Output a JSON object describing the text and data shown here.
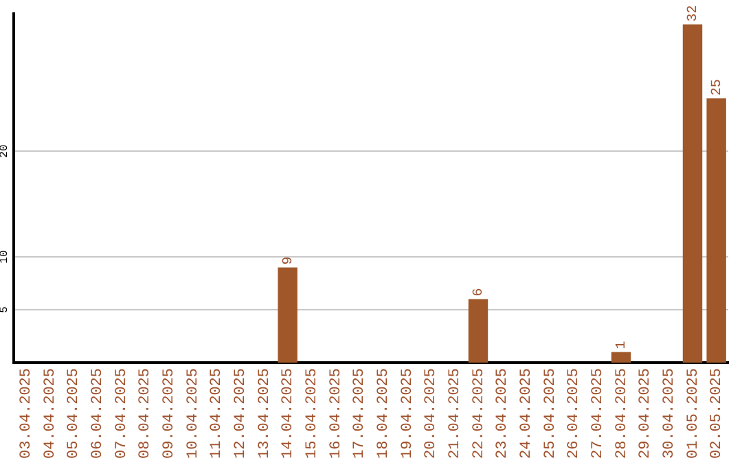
{
  "chart_data": {
    "type": "bar",
    "categories": [
      "03.04.2025",
      "04.04.2025",
      "05.04.2025",
      "06.04.2025",
      "07.04.2025",
      "08.04.2025",
      "09.04.2025",
      "10.04.2025",
      "11.04.2025",
      "12.04.2025",
      "13.04.2025",
      "14.04.2025",
      "15.04.2025",
      "16.04.2025",
      "17.04.2025",
      "18.04.2025",
      "19.04.2025",
      "20.04.2025",
      "21.04.2025",
      "22.04.2025",
      "23.04.2025",
      "24.04.2025",
      "25.04.2025",
      "26.04.2025",
      "27.04.2025",
      "28.04.2025",
      "29.04.2025",
      "30.04.2025",
      "01.05.2025",
      "02.05.2025"
    ],
    "values": [
      0,
      0,
      0,
      0,
      0,
      0,
      0,
      0,
      0,
      0,
      0,
      9,
      0,
      0,
      0,
      0,
      0,
      0,
      0,
      6,
      0,
      0,
      0,
      0,
      0,
      1,
      0,
      0,
      32,
      25
    ],
    "value_labels": [
      null,
      null,
      null,
      null,
      null,
      null,
      null,
      null,
      null,
      null,
      null,
      "9",
      null,
      null,
      null,
      null,
      null,
      null,
      null,
      "6",
      null,
      null,
      null,
      null,
      null,
      "1",
      null,
      null,
      "32",
      "25"
    ],
    "color": "#a0582a",
    "ylim": [
      0,
      33
    ],
    "yticks": [
      5,
      10,
      20
    ],
    "grid": "y",
    "legend": false
  }
}
